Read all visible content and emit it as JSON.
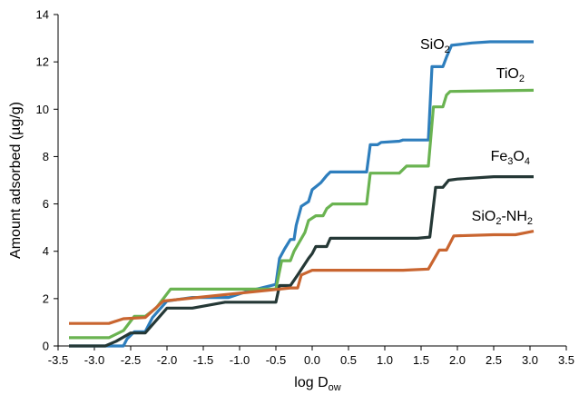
{
  "chart_data": {
    "type": "line",
    "title": "",
    "xlabel": {
      "main": "log D",
      "sub": "ow"
    },
    "ylabel": "Amount adsorbed (µg/g)",
    "xlim": [
      -3.5,
      3.5
    ],
    "ylim": [
      0,
      14
    ],
    "x_ticks": [
      "-3.5",
      "-3.0",
      "-2.5",
      "-2.0",
      "-1.5",
      "-1.0",
      "-0.5",
      "0.0",
      "0.5",
      "1.0",
      "1.5",
      "2.0",
      "2.5",
      "3.0",
      "3.5"
    ],
    "y_ticks": [
      "0",
      "2",
      "4",
      "6",
      "8",
      "10",
      "12",
      "14"
    ],
    "grid": false,
    "legend": "inline labels at right end of each series",
    "series": [
      {
        "name": "SiO2",
        "label_parts": [
          [
            "SiO",
            false
          ],
          [
            "2",
            true
          ]
        ],
        "color": "#2e7ebd",
        "points": [
          [
            -3.35,
            0
          ],
          [
            -2.6,
            0
          ],
          [
            -2.55,
            0.3
          ],
          [
            -2.45,
            0.6
          ],
          [
            -2.3,
            0.6
          ],
          [
            -2.2,
            1.2
          ],
          [
            -2.0,
            1.9
          ],
          [
            -1.65,
            2.05
          ],
          [
            -1.15,
            2.05
          ],
          [
            -0.9,
            2.3
          ],
          [
            -0.5,
            2.6
          ],
          [
            -0.45,
            3.7
          ],
          [
            -0.38,
            4.1
          ],
          [
            -0.3,
            4.5
          ],
          [
            -0.25,
            4.5
          ],
          [
            -0.22,
            5.1
          ],
          [
            -0.15,
            5.9
          ],
          [
            -0.05,
            6.1
          ],
          [
            0.0,
            6.6
          ],
          [
            0.08,
            6.8
          ],
          [
            0.12,
            6.9
          ],
          [
            0.2,
            7.2
          ],
          [
            0.25,
            7.35
          ],
          [
            0.75,
            7.35
          ],
          [
            0.8,
            8.5
          ],
          [
            0.9,
            8.5
          ],
          [
            0.95,
            8.6
          ],
          [
            1.2,
            8.65
          ],
          [
            1.25,
            8.7
          ],
          [
            1.6,
            8.7
          ],
          [
            1.65,
            11.8
          ],
          [
            1.8,
            11.8
          ],
          [
            1.85,
            12.2
          ],
          [
            1.92,
            12.7
          ],
          [
            2.2,
            12.8
          ],
          [
            2.45,
            12.85
          ],
          [
            3.05,
            12.85
          ]
        ]
      },
      {
        "name": "TiO2",
        "label_parts": [
          [
            "TiO",
            false
          ],
          [
            "2",
            true
          ]
        ],
        "color": "#6ab351",
        "points": [
          [
            -3.35,
            0.35
          ],
          [
            -2.8,
            0.35
          ],
          [
            -2.6,
            0.65
          ],
          [
            -2.45,
            1.25
          ],
          [
            -2.3,
            1.25
          ],
          [
            -2.15,
            1.6
          ],
          [
            -1.95,
            2.4
          ],
          [
            -0.5,
            2.4
          ],
          [
            -0.42,
            3.6
          ],
          [
            -0.3,
            3.6
          ],
          [
            -0.25,
            4.0
          ],
          [
            -0.1,
            4.8
          ],
          [
            -0.05,
            5.3
          ],
          [
            0.05,
            5.5
          ],
          [
            0.15,
            5.5
          ],
          [
            0.2,
            5.8
          ],
          [
            0.28,
            6.0
          ],
          [
            0.75,
            6.0
          ],
          [
            0.8,
            7.3
          ],
          [
            1.2,
            7.3
          ],
          [
            1.3,
            7.6
          ],
          [
            1.6,
            7.6
          ],
          [
            1.67,
            10.1
          ],
          [
            1.8,
            10.1
          ],
          [
            1.85,
            10.6
          ],
          [
            1.9,
            10.75
          ],
          [
            3.05,
            10.8
          ]
        ]
      },
      {
        "name": "Fe3O4",
        "label_parts": [
          [
            "Fe",
            false
          ],
          [
            "3",
            true
          ],
          [
            "O",
            false
          ],
          [
            "4",
            true
          ]
        ],
        "color": "#253836",
        "points": [
          [
            -3.35,
            0
          ],
          [
            -2.85,
            0
          ],
          [
            -2.7,
            0.2
          ],
          [
            -2.5,
            0.55
          ],
          [
            -2.3,
            0.55
          ],
          [
            -2.0,
            1.6
          ],
          [
            -1.65,
            1.6
          ],
          [
            -1.2,
            1.85
          ],
          [
            -0.5,
            1.85
          ],
          [
            -0.45,
            2.55
          ],
          [
            -0.3,
            2.55
          ],
          [
            -0.2,
            3.0
          ],
          [
            -0.05,
            3.7
          ],
          [
            0.0,
            3.9
          ],
          [
            0.05,
            4.2
          ],
          [
            0.2,
            4.2
          ],
          [
            0.25,
            4.55
          ],
          [
            1.0,
            4.55
          ],
          [
            1.45,
            4.55
          ],
          [
            1.62,
            4.6
          ],
          [
            1.7,
            6.7
          ],
          [
            1.8,
            6.7
          ],
          [
            1.88,
            7.0
          ],
          [
            2.0,
            7.05
          ],
          [
            2.5,
            7.15
          ],
          [
            3.05,
            7.15
          ]
        ]
      },
      {
        "name": "SiO2-NH2",
        "label_parts": [
          [
            "SiO",
            false
          ],
          [
            "2",
            true
          ],
          [
            "-NH",
            false
          ],
          [
            "2",
            true
          ]
        ],
        "color": "#c96530",
        "points": [
          [
            -3.35,
            0.95
          ],
          [
            -2.8,
            0.95
          ],
          [
            -2.6,
            1.15
          ],
          [
            -2.3,
            1.2
          ],
          [
            -2.05,
            1.9
          ],
          [
            -0.3,
            2.45
          ],
          [
            -0.2,
            2.45
          ],
          [
            -0.15,
            3.0
          ],
          [
            0.0,
            3.2
          ],
          [
            1.25,
            3.2
          ],
          [
            1.6,
            3.25
          ],
          [
            1.75,
            4.05
          ],
          [
            1.85,
            4.05
          ],
          [
            1.95,
            4.65
          ],
          [
            2.5,
            4.7
          ],
          [
            2.8,
            4.7
          ],
          [
            3.05,
            4.85
          ]
        ]
      }
    ]
  }
}
